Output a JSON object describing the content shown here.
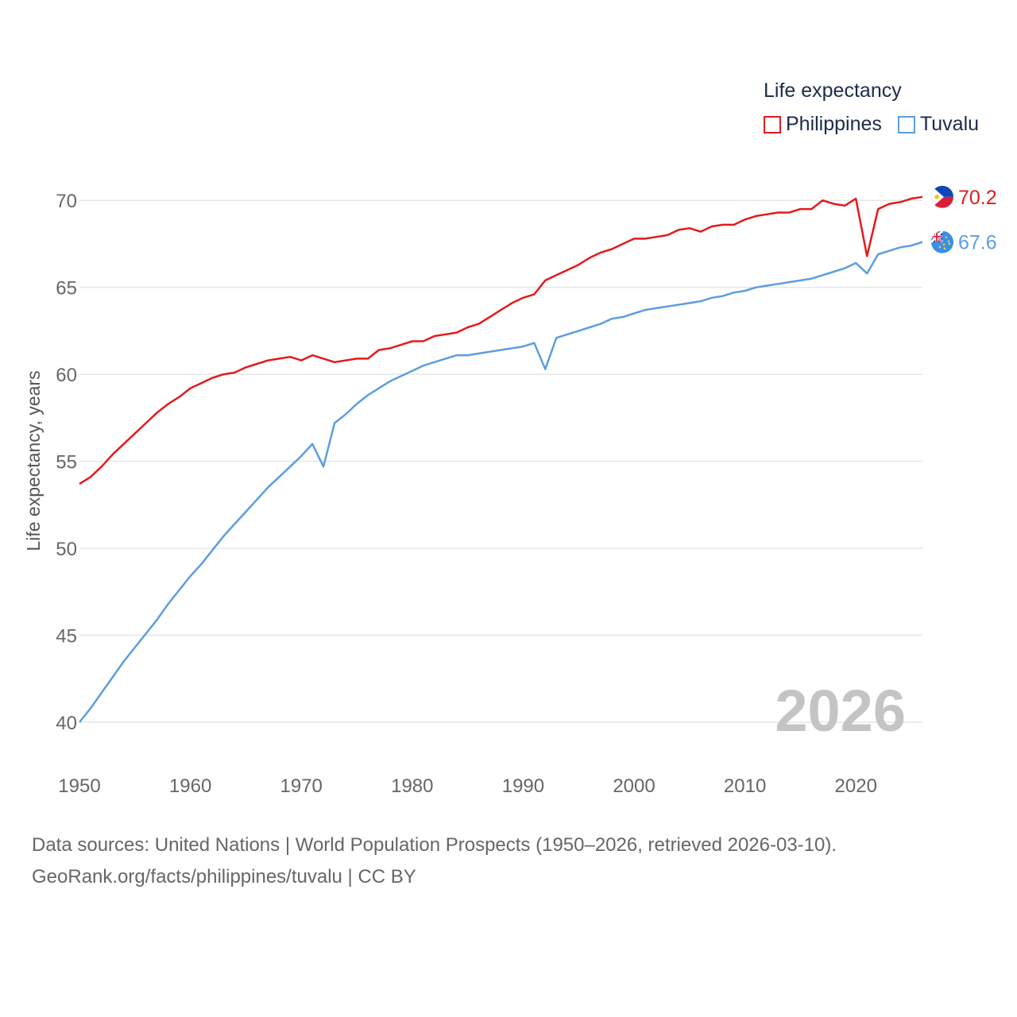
{
  "chart_data": {
    "type": "line",
    "title": "Life expectancy",
    "ylabel": "Life expectancy, years",
    "xlabel": "",
    "xlim": [
      1950,
      2026
    ],
    "ylim": [
      39,
      72
    ],
    "x_ticks": [
      1950,
      1960,
      1970,
      1980,
      1990,
      2000,
      2010,
      2020
    ],
    "y_ticks": [
      40,
      45,
      50,
      55,
      60,
      65,
      70
    ],
    "year_watermark": "2026",
    "grid": true,
    "legend_position": "top-right",
    "series": [
      {
        "name": "Philippines",
        "color": "#e31a1c",
        "end_label": "70.2",
        "flag_icon": "philippines-flag-icon",
        "x": [
          1950,
          1951,
          1952,
          1953,
          1954,
          1955,
          1956,
          1957,
          1958,
          1959,
          1960,
          1961,
          1962,
          1963,
          1964,
          1965,
          1966,
          1967,
          1968,
          1969,
          1970,
          1971,
          1972,
          1973,
          1974,
          1975,
          1976,
          1977,
          1978,
          1979,
          1980,
          1981,
          1982,
          1983,
          1984,
          1985,
          1986,
          1987,
          1988,
          1989,
          1990,
          1991,
          1992,
          1993,
          1994,
          1995,
          1996,
          1997,
          1998,
          1999,
          2000,
          2001,
          2002,
          2003,
          2004,
          2005,
          2006,
          2007,
          2008,
          2009,
          2010,
          2011,
          2012,
          2013,
          2014,
          2015,
          2016,
          2017,
          2018,
          2019,
          2020,
          2021,
          2022,
          2023,
          2024,
          2025,
          2026
        ],
        "values": [
          53.7,
          54.1,
          54.7,
          55.4,
          56.0,
          56.6,
          57.2,
          57.8,
          58.3,
          58.7,
          59.2,
          59.5,
          59.8,
          60.0,
          60.1,
          60.4,
          60.6,
          60.8,
          60.9,
          61.0,
          60.8,
          61.1,
          60.9,
          60.7,
          60.8,
          60.9,
          60.9,
          61.4,
          61.5,
          61.7,
          61.9,
          61.9,
          62.2,
          62.3,
          62.4,
          62.7,
          62.9,
          63.3,
          63.7,
          64.1,
          64.4,
          64.6,
          65.4,
          65.7,
          66.0,
          66.3,
          66.7,
          67.0,
          67.2,
          67.5,
          67.8,
          67.8,
          67.9,
          68.0,
          68.3,
          68.4,
          68.2,
          68.5,
          68.6,
          68.6,
          68.9,
          69.1,
          69.2,
          69.3,
          69.3,
          69.5,
          69.5,
          70.0,
          69.8,
          69.7,
          70.1,
          66.8,
          69.5,
          69.8,
          69.9,
          70.1,
          70.2
        ]
      },
      {
        "name": "Tuvalu",
        "color": "#5b9ee1",
        "end_label": "67.6",
        "flag_icon": "tuvalu-flag-icon",
        "x": [
          1950,
          1951,
          1952,
          1953,
          1954,
          1955,
          1956,
          1957,
          1958,
          1959,
          1960,
          1961,
          1962,
          1963,
          1964,
          1965,
          1966,
          1967,
          1968,
          1969,
          1970,
          1971,
          1972,
          1973,
          1974,
          1975,
          1976,
          1977,
          1978,
          1979,
          1980,
          1981,
          1982,
          1983,
          1984,
          1985,
          1986,
          1987,
          1988,
          1989,
          1990,
          1991,
          1992,
          1993,
          1994,
          1995,
          1996,
          1997,
          1998,
          1999,
          2000,
          2001,
          2002,
          2003,
          2004,
          2005,
          2006,
          2007,
          2008,
          2009,
          2010,
          2011,
          2012,
          2013,
          2014,
          2015,
          2016,
          2017,
          2018,
          2019,
          2020,
          2021,
          2022,
          2023,
          2024,
          2025,
          2026
        ],
        "values": [
          40.0,
          40.8,
          41.7,
          42.6,
          43.5,
          44.3,
          45.1,
          45.9,
          46.8,
          47.6,
          48.4,
          49.1,
          49.9,
          50.7,
          51.4,
          52.1,
          52.8,
          53.5,
          54.1,
          54.7,
          55.3,
          56.0,
          54.7,
          57.2,
          57.7,
          58.3,
          58.8,
          59.2,
          59.6,
          59.9,
          60.2,
          60.5,
          60.7,
          60.9,
          61.1,
          61.1,
          61.2,
          61.3,
          61.4,
          61.5,
          61.6,
          61.8,
          60.3,
          62.1,
          62.3,
          62.5,
          62.7,
          62.9,
          63.2,
          63.3,
          63.5,
          63.7,
          63.8,
          63.9,
          64.0,
          64.1,
          64.2,
          64.4,
          64.5,
          64.7,
          64.8,
          65.0,
          65.1,
          65.2,
          65.3,
          65.4,
          65.5,
          65.7,
          65.9,
          66.1,
          66.4,
          65.8,
          66.9,
          67.1,
          67.3,
          67.4,
          67.6
        ]
      }
    ]
  },
  "source": {
    "line1": "Data sources: United Nations | World Population Prospects (1950–2026, retrieved 2026-03-10).",
    "line2": "GeoRank.org/facts/philippines/tuvalu | CC BY"
  }
}
